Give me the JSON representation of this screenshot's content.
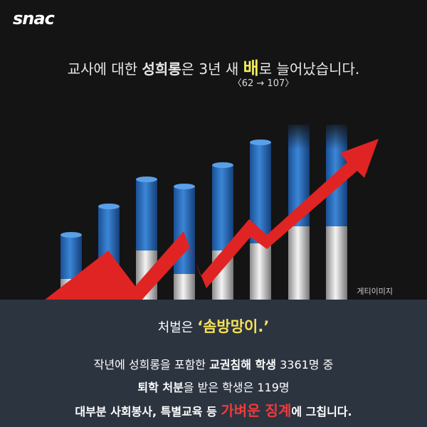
{
  "logo": "snac",
  "headline": {
    "parts": [
      {
        "text": "교사에 대한 ",
        "style": "plain"
      },
      {
        "text": "성희롱",
        "style": "bold"
      },
      {
        "text": "은 3년 새 ",
        "style": "plain"
      },
      {
        "text": "배",
        "style": "highlight"
      },
      {
        "text": "로 늘어났습니다.",
        "style": "plain"
      }
    ]
  },
  "subtitle": "〈62 → 107〉",
  "credit": "게티이미지",
  "panel": {
    "punish": [
      {
        "text": "처벌은 ",
        "style": "plain"
      },
      {
        "text": "‘솜방망이.’",
        "style": "yellow"
      }
    ],
    "lines": [
      [
        {
          "text": "작년에 성희롱을 포함한 ",
          "style": "plain"
        },
        {
          "text": "교권침해 학생",
          "style": "bold"
        },
        {
          "text": " 3361명 중",
          "style": "plain"
        }
      ],
      [
        {
          "text": "퇴학 처분",
          "style": "bold"
        },
        {
          "text": "을 받은 학생은 119명",
          "style": "plain"
        }
      ],
      [
        {
          "text": "대부분 사회봉사, 특별교육 등 ",
          "style": "bold"
        },
        {
          "text": "가벼운 징계",
          "style": "red"
        },
        {
          "text": "에 그칩니다.",
          "style": "bold"
        }
      ]
    ]
  }
}
